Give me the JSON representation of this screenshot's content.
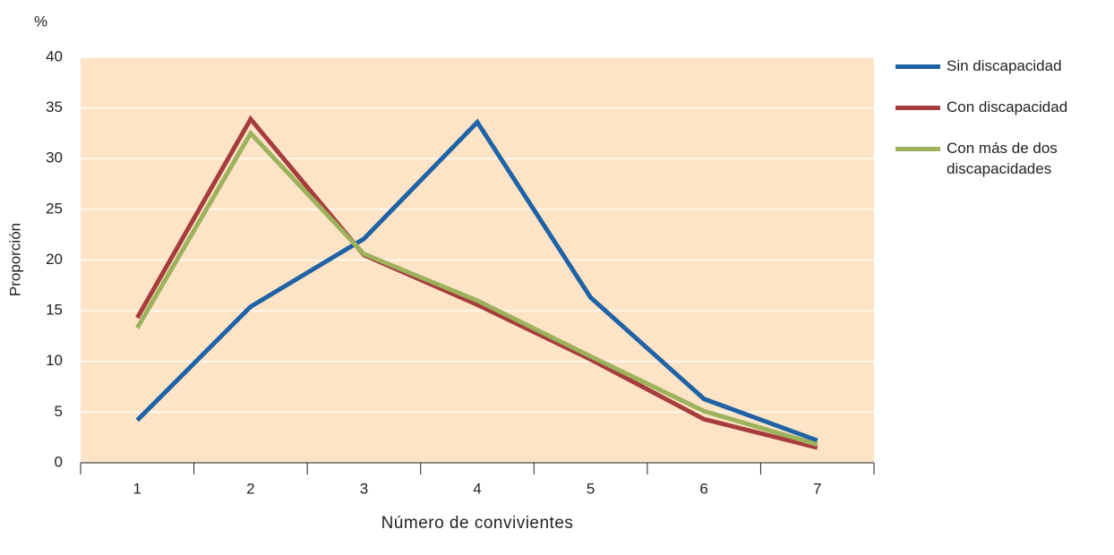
{
  "chart_data": {
    "type": "line",
    "unit": "%",
    "ylabel": "Proporción",
    "xlabel": "Número de convivientes",
    "categories": [
      "1",
      "2",
      "3",
      "4",
      "5",
      "6",
      "7"
    ],
    "series": [
      {
        "name": "Sin discapacidad",
        "color": "#1f63a6",
        "values": [
          4.2,
          15.4,
          22.1,
          33.6,
          16.3,
          6.3,
          2.2
        ]
      },
      {
        "name": "Con discapacidad",
        "color": "#a63c3c",
        "values": [
          14.3,
          33.9,
          20.5,
          15.6,
          10.2,
          4.3,
          1.5
        ]
      },
      {
        "name": "Con más de dos discapacidades",
        "color": "#9cb25c",
        "values": [
          13.3,
          32.5,
          20.6,
          16.0,
          10.5,
          5.1,
          1.8
        ]
      }
    ],
    "ylim": [
      0,
      40
    ],
    "yticks": [
      0,
      5,
      10,
      15,
      20,
      25,
      30,
      35,
      40
    ],
    "grid": true,
    "plot_background": "#fde4c6"
  }
}
